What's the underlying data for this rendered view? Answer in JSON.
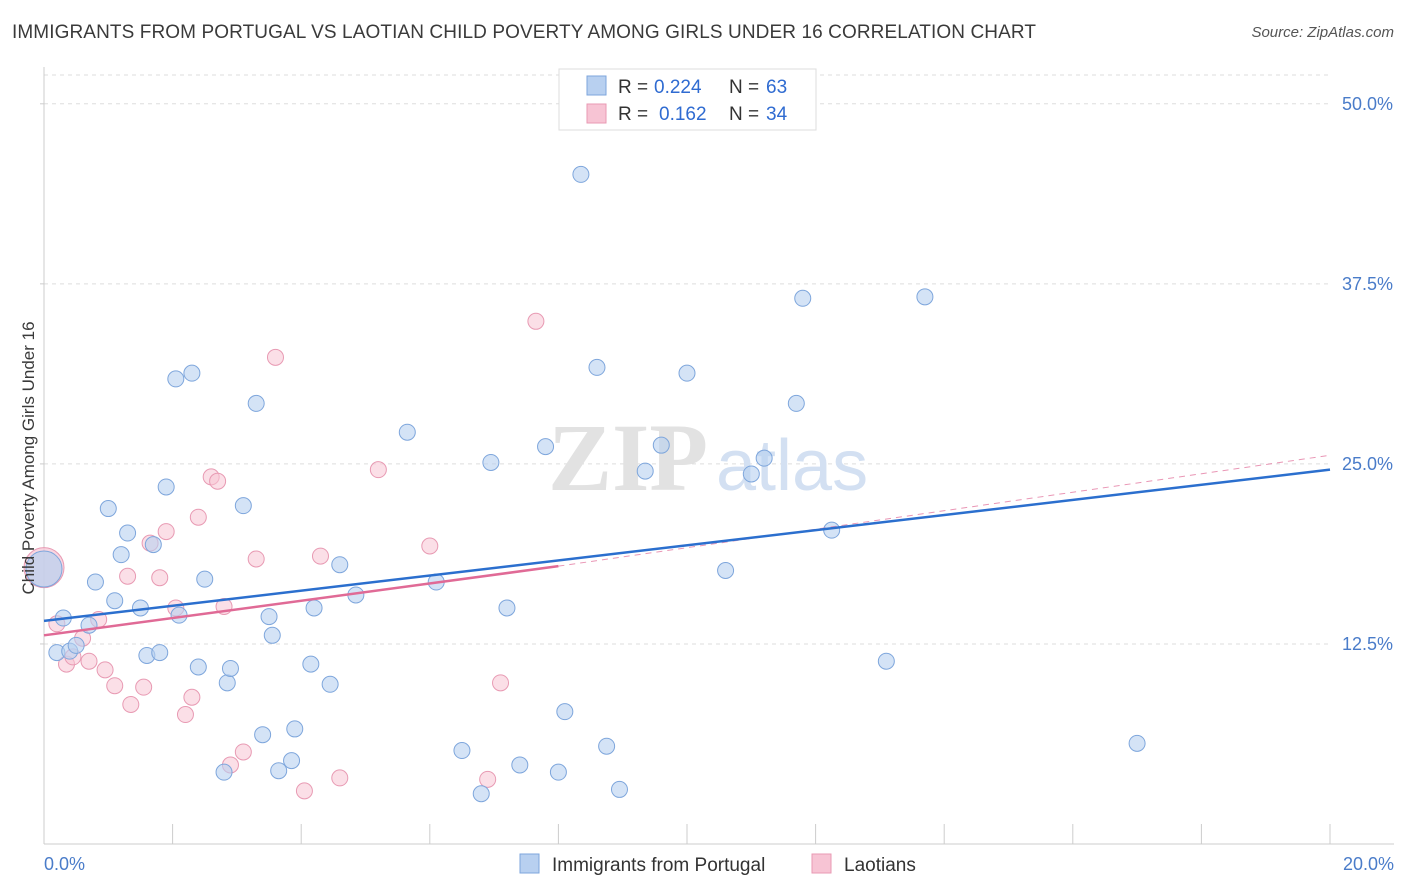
{
  "header": {
    "title": "IMMIGRANTS FROM PORTUGAL VS LAOTIAN CHILD POVERTY AMONG GIRLS UNDER 16 CORRELATION CHART",
    "source": "Source: ZipAtlas.com"
  },
  "watermark": {
    "zip": "ZIP",
    "atlas": "atlas"
  },
  "legend": {
    "rows": [
      {
        "r_label": "R =",
        "r_value": "0.224",
        "n_label": "N =",
        "n_value": "63"
      },
      {
        "r_label": "R =",
        "r_value": "0.162",
        "n_label": "N =",
        "n_value": "34"
      }
    ]
  },
  "bottom_legend": [
    "Immigrants from Portugal",
    "Laotians"
  ],
  "colors": {
    "blue_fill": "#b8d0f0",
    "blue_stroke": "#7ea6dc",
    "blue_line": "#2b6fce",
    "pink_fill": "#f7c4d4",
    "pink_stroke": "#e89ab3",
    "pink_line": "#e06a96",
    "tick_text": "#4a7cc9",
    "grid": "#dddddd"
  },
  "chart_data": {
    "type": "scatter",
    "title": "IMMIGRANTS FROM PORTUGAL VS LAOTIAN CHILD POVERTY AMONG GIRLS UNDER 16 CORRELATION CHART",
    "xlabel": "",
    "ylabel": "Child Poverty Among Girls Under 16",
    "xlim": [
      0,
      20
    ],
    "ylim": [
      0,
      52
    ],
    "x_tick_labels": [
      "0.0%",
      "20.0%"
    ],
    "y_ticks": [
      12.5,
      25.0,
      37.5,
      50.0
    ],
    "y_tick_labels": [
      "12.5%",
      "25.0%",
      "37.5%",
      "50.0%"
    ],
    "grid": true,
    "legend_position": "top-center",
    "series": [
      {
        "name": "Immigrants from Portugal",
        "color": "#b8d0f0",
        "r": 0.224,
        "n": 63,
        "trend": {
          "x": [
            0,
            20
          ],
          "y": [
            14.1,
            24.6
          ]
        },
        "points": [
          [
            0.0,
            17.7
          ],
          [
            0.2,
            11.9
          ],
          [
            0.3,
            14.3
          ],
          [
            0.4,
            12.0
          ],
          [
            0.5,
            12.4
          ],
          [
            0.7,
            13.8
          ],
          [
            0.8,
            16.8
          ],
          [
            1.0,
            21.9
          ],
          [
            1.1,
            15.5
          ],
          [
            1.2,
            18.7
          ],
          [
            1.3,
            20.2
          ],
          [
            1.5,
            15.0
          ],
          [
            1.6,
            11.7
          ],
          [
            1.7,
            19.4
          ],
          [
            1.8,
            11.9
          ],
          [
            1.9,
            23.4
          ],
          [
            2.05,
            30.9
          ],
          [
            2.1,
            14.5
          ],
          [
            2.3,
            31.3
          ],
          [
            2.4,
            10.9
          ],
          [
            2.5,
            17.0
          ],
          [
            2.8,
            3.6
          ],
          [
            2.85,
            9.8
          ],
          [
            2.9,
            10.8
          ],
          [
            3.1,
            22.1
          ],
          [
            3.3,
            29.2
          ],
          [
            3.4,
            6.2
          ],
          [
            3.5,
            14.4
          ],
          [
            3.55,
            13.1
          ],
          [
            3.65,
            3.7
          ],
          [
            3.85,
            4.4
          ],
          [
            3.9,
            6.6
          ],
          [
            4.15,
            11.1
          ],
          [
            4.2,
            15.0
          ],
          [
            4.45,
            9.7
          ],
          [
            4.6,
            18.0
          ],
          [
            4.85,
            15.9
          ],
          [
            5.65,
            27.2
          ],
          [
            6.1,
            16.8
          ],
          [
            6.5,
            5.1
          ],
          [
            6.8,
            2.1
          ],
          [
            6.95,
            25.1
          ],
          [
            7.2,
            15.0
          ],
          [
            7.4,
            4.1
          ],
          [
            7.8,
            26.2
          ],
          [
            8.0,
            3.6
          ],
          [
            8.1,
            7.8
          ],
          [
            8.35,
            45.1
          ],
          [
            8.6,
            31.7
          ],
          [
            8.75,
            5.4
          ],
          [
            8.95,
            2.4
          ],
          [
            9.35,
            24.5
          ],
          [
            9.6,
            26.3
          ],
          [
            10.0,
            31.3
          ],
          [
            10.6,
            17.6
          ],
          [
            11.0,
            24.3
          ],
          [
            11.2,
            25.4
          ],
          [
            11.7,
            29.2
          ],
          [
            11.8,
            36.5
          ],
          [
            12.25,
            20.4
          ],
          [
            13.1,
            11.3
          ],
          [
            13.7,
            36.6
          ],
          [
            17.0,
            5.6
          ]
        ]
      },
      {
        "name": "Laotians",
        "color": "#f7c4d4",
        "r": 0.162,
        "n": 34,
        "trend": {
          "x": [
            0,
            8.0
          ],
          "y": [
            13.1,
            17.9
          ]
        },
        "trend_extension": {
          "x": [
            8.0,
            20
          ],
          "y": [
            17.9,
            25.6
          ]
        },
        "points": [
          [
            0.0,
            17.8
          ],
          [
            0.2,
            13.9
          ],
          [
            0.35,
            11.1
          ],
          [
            0.45,
            11.6
          ],
          [
            0.6,
            12.9
          ],
          [
            0.7,
            11.3
          ],
          [
            0.85,
            14.2
          ],
          [
            0.95,
            10.7
          ],
          [
            1.1,
            9.6
          ],
          [
            1.3,
            17.2
          ],
          [
            1.35,
            8.3
          ],
          [
            1.55,
            9.5
          ],
          [
            1.65,
            19.5
          ],
          [
            1.8,
            17.1
          ],
          [
            1.9,
            20.3
          ],
          [
            2.05,
            15.0
          ],
          [
            2.2,
            7.6
          ],
          [
            2.3,
            8.8
          ],
          [
            2.4,
            21.3
          ],
          [
            2.6,
            24.1
          ],
          [
            2.7,
            23.8
          ],
          [
            2.8,
            15.1
          ],
          [
            2.9,
            4.1
          ],
          [
            3.1,
            5.0
          ],
          [
            3.3,
            18.4
          ],
          [
            3.6,
            32.4
          ],
          [
            4.05,
            2.3
          ],
          [
            4.3,
            18.6
          ],
          [
            4.6,
            3.2
          ],
          [
            5.2,
            24.6
          ],
          [
            6.0,
            19.3
          ],
          [
            6.9,
            3.1
          ],
          [
            7.1,
            9.8
          ],
          [
            7.65,
            34.9
          ]
        ]
      }
    ]
  }
}
